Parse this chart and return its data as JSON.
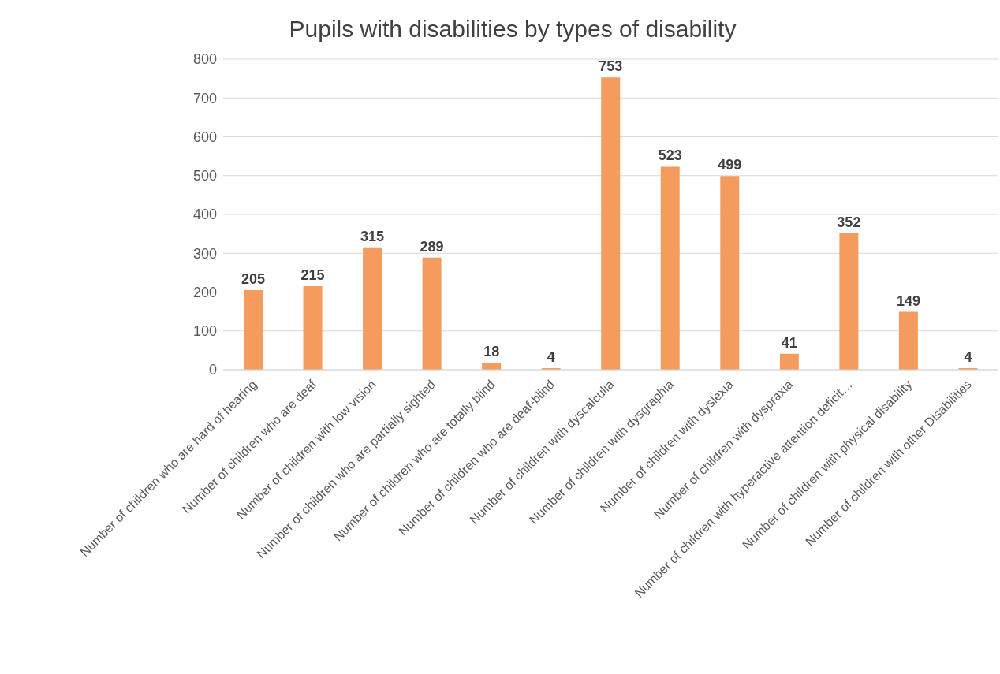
{
  "chart_data": {
    "type": "bar",
    "title": "Pupils with disabilities by types of disability",
    "categories": [
      "Number of children who are hard of hearing",
      "Number of children who are deaf",
      "Number of children with low vision",
      "Number of children who are partially sighted",
      "Number of children who are totally blind",
      "Number of children who are deaf-blind",
      "Number of children with dyscalculia",
      "Number of children with dysgraphia",
      "Number of children with dyslexia",
      "Number of children with dyspraxia",
      "Number of children with hyperactive attention deficit…",
      "Number of children with physical disability",
      "Number of children with other Disabilities"
    ],
    "values": [
      205,
      215,
      315,
      289,
      18,
      4,
      753,
      523,
      499,
      41,
      352,
      149,
      4
    ],
    "color": "#f39c5d",
    "ylim": [
      0,
      800
    ],
    "yticks": [
      0,
      100,
      200,
      300,
      400,
      500,
      600,
      700,
      800
    ],
    "grid": "y",
    "data_labels": true
  }
}
